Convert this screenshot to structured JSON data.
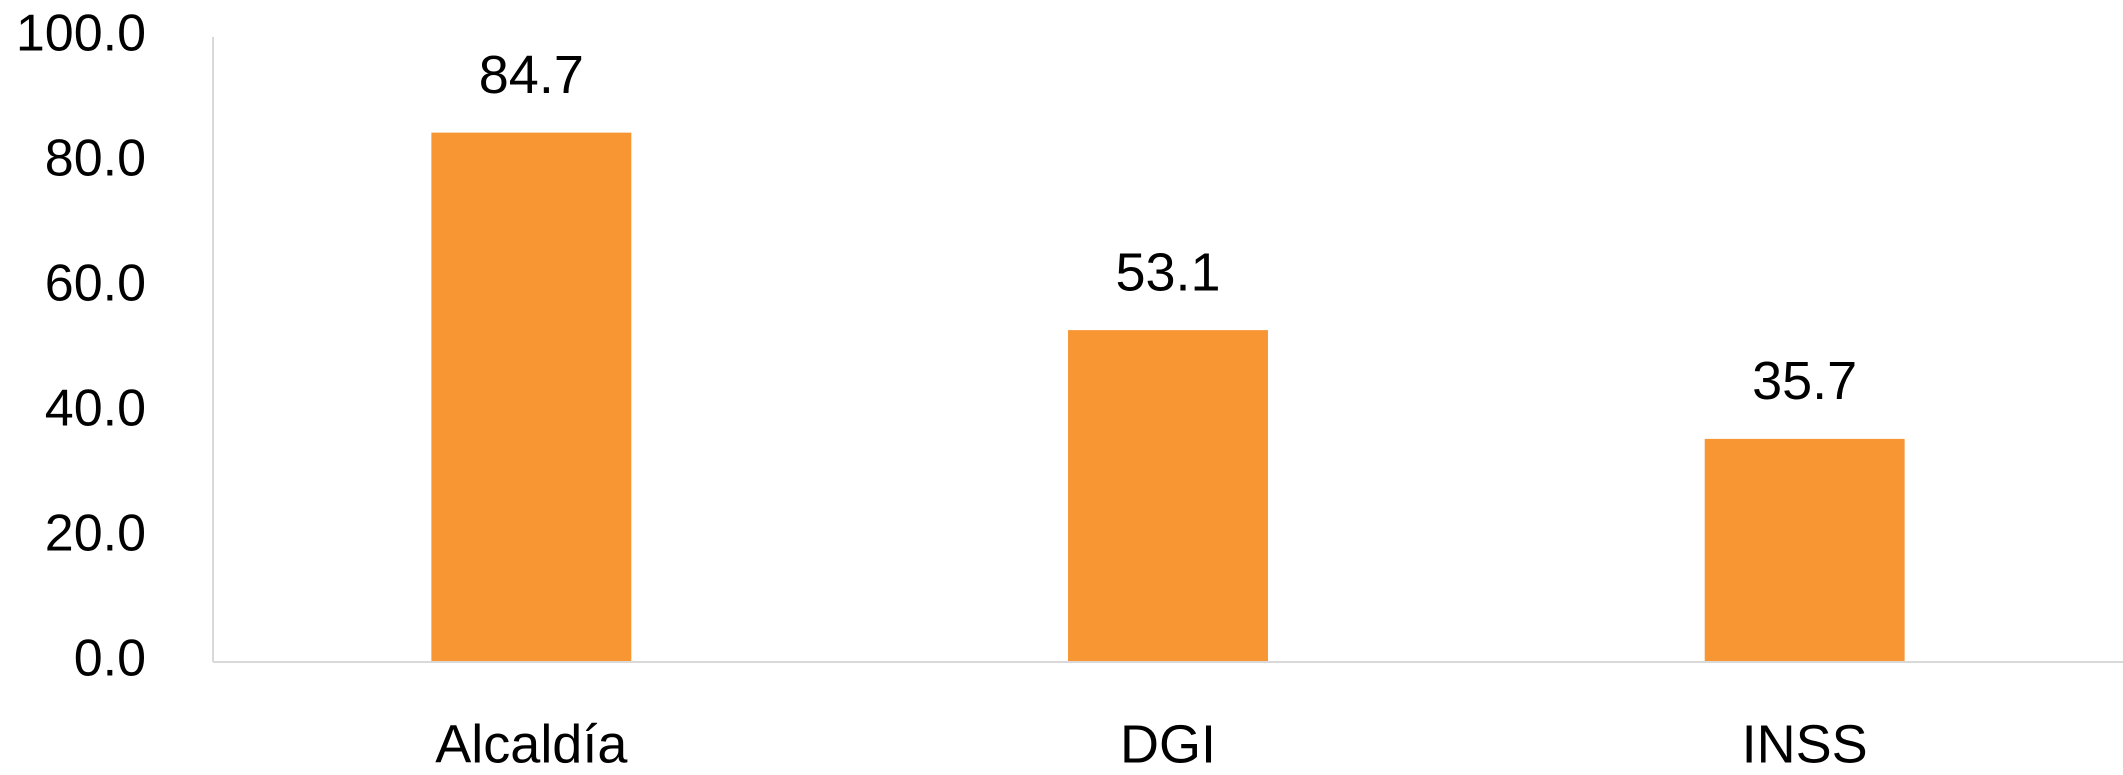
{
  "chart_data": {
    "type": "bar",
    "categories": [
      "Alcaldía",
      "DGI",
      "INSS"
    ],
    "values": [
      84.7,
      53.1,
      35.7
    ],
    "color": "#f79633",
    "ylim": [
      0,
      100
    ],
    "yticks": [
      {
        "value": 0,
        "label": "0.0"
      },
      {
        "value": 20,
        "label": "20.0"
      },
      {
        "value": 40,
        "label": "40.0"
      },
      {
        "value": 60,
        "label": "60.0"
      },
      {
        "value": 80,
        "label": "80.0"
      },
      {
        "value": 100,
        "label": "100.0"
      }
    ],
    "grid": false,
    "data_labels": true
  }
}
